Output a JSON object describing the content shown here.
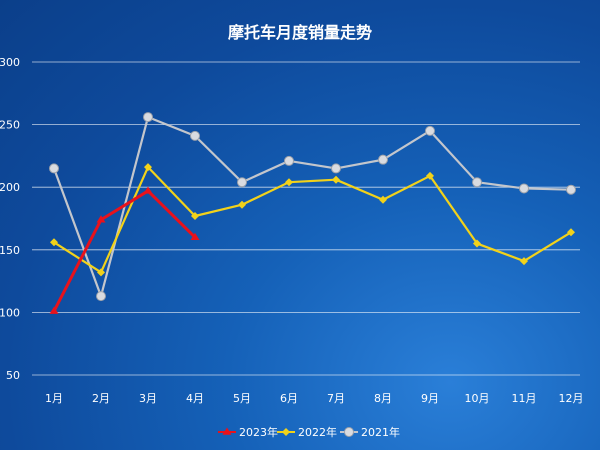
{
  "chart_data": {
    "type": "line",
    "title": "摩托车月度销量走势",
    "categories": [
      "1月",
      "2月",
      "3月",
      "4月",
      "5月",
      "6月",
      "7月",
      "8月",
      "9月",
      "10月",
      "11月",
      "12月"
    ],
    "ylim": [
      50,
      300
    ],
    "yticks": [
      50,
      100,
      150,
      200,
      250,
      300
    ],
    "grid": true,
    "legend_position": "bottom",
    "series": [
      {
        "name": "2023年",
        "color": "#e8121c",
        "marker": "arrow",
        "values": [
          101,
          174,
          197,
          160,
          null,
          null,
          null,
          null,
          null,
          null,
          null,
          null
        ]
      },
      {
        "name": "2022年",
        "color": "#f2d21a",
        "marker": "diamond",
        "values": [
          156,
          132,
          216,
          177,
          186,
          204,
          206,
          190,
          209,
          155,
          141,
          164
        ]
      },
      {
        "name": "2021年",
        "color": "#c3c6cc",
        "marker": "circle",
        "values": [
          215,
          113,
          256,
          241,
          204,
          221,
          215,
          222,
          245,
          204,
          199,
          198
        ]
      }
    ]
  }
}
